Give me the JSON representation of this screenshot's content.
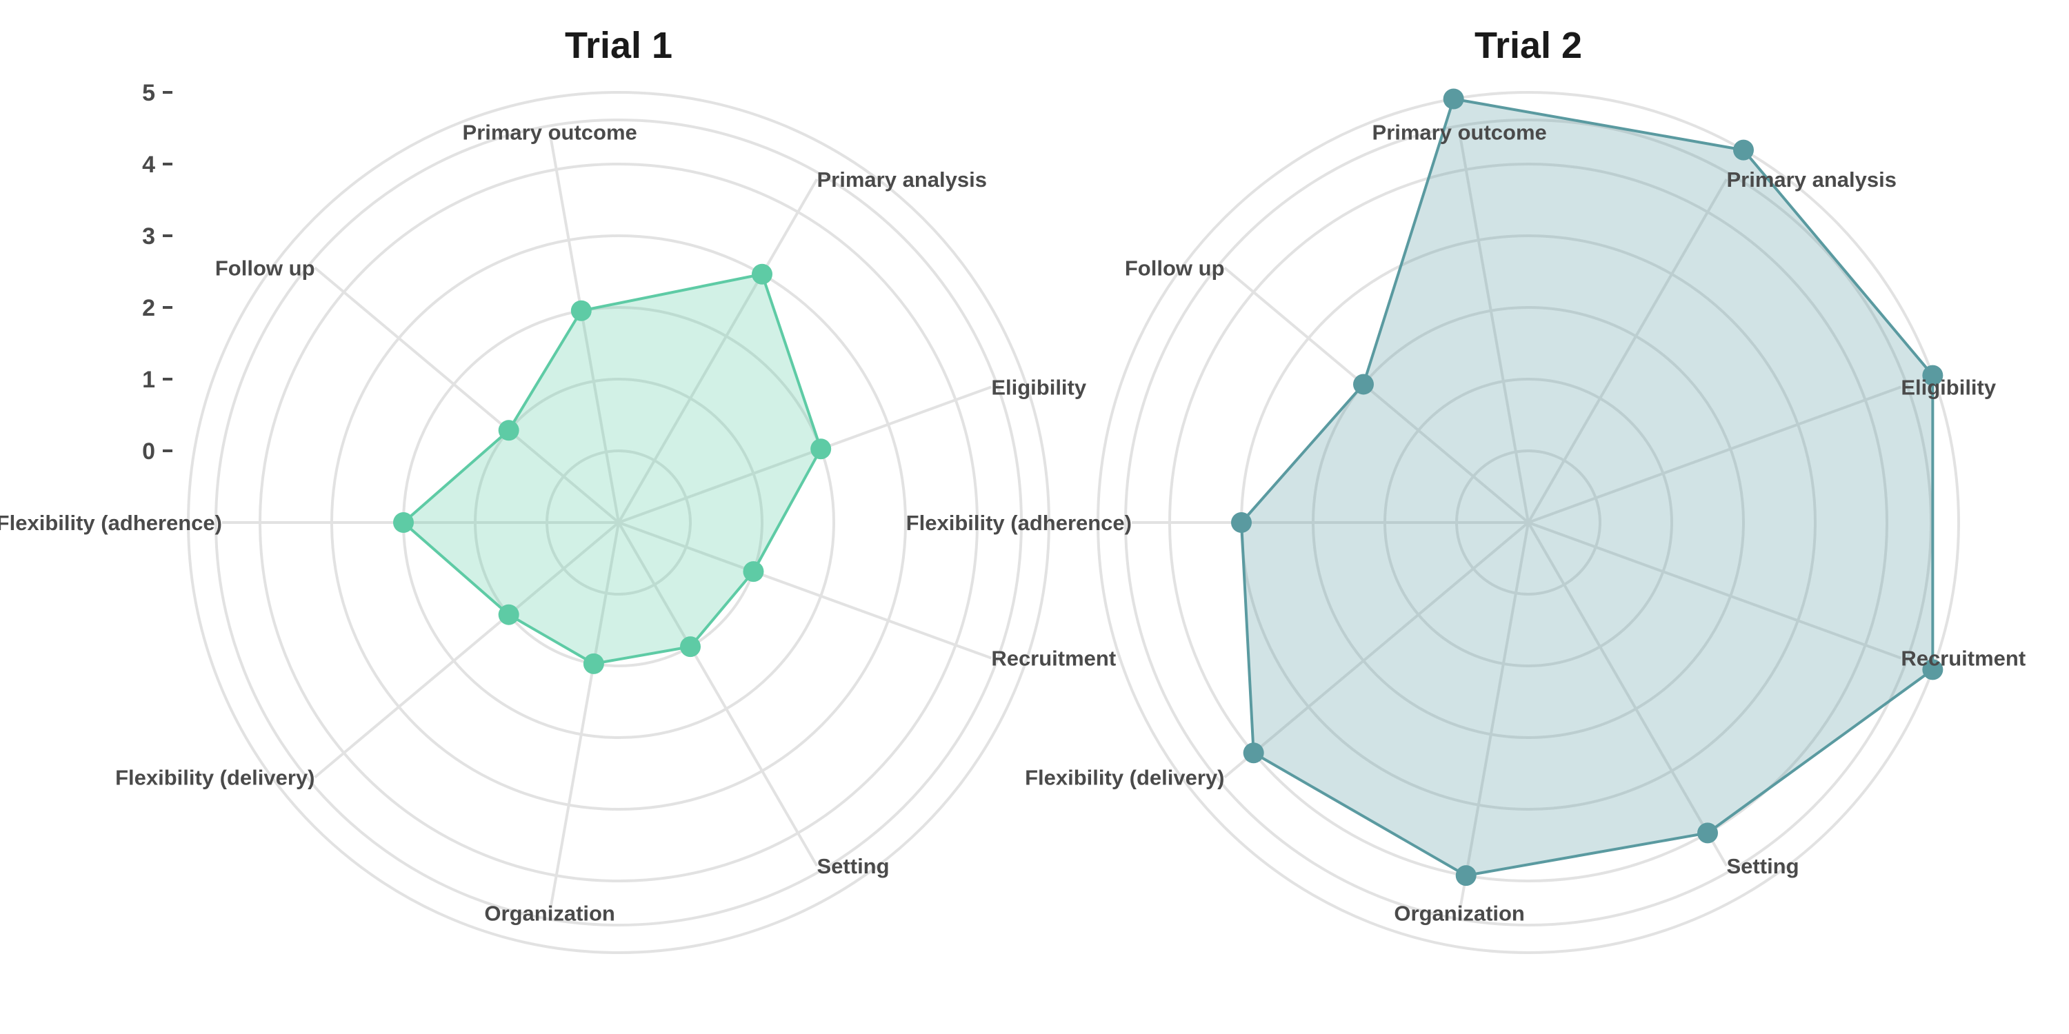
{
  "chart_data": [
    {
      "type": "radar",
      "title": "Trial 1",
      "categories": [
        "Eligibility",
        "Recruitment",
        "Setting",
        "Organization",
        "Flexibility (delivery)",
        "Flexibility (adherence)",
        "Follow up",
        "Primary outcome",
        "Primary analysis"
      ],
      "values": [
        2,
        1,
        1,
        1,
        1,
        2,
        1,
        2,
        3
      ],
      "rlim": [
        -1,
        5
      ],
      "ticks": [
        "0",
        "1",
        "2",
        "3",
        "4",
        "5"
      ],
      "color": "#5ecba5",
      "grid": true
    },
    {
      "type": "radar",
      "title": "Trial 2",
      "categories": [
        "Eligibility",
        "Recruitment",
        "Setting",
        "Organization",
        "Flexibility (delivery)",
        "Flexibility (adherence)",
        "Follow up",
        "Primary outcome",
        "Primary analysis"
      ],
      "values": [
        5,
        5,
        4,
        4,
        4,
        3,
        2,
        5,
        5
      ],
      "rlim": [
        -1,
        5
      ],
      "ticks": [],
      "color": "#5a9aa0",
      "grid": true
    }
  ]
}
